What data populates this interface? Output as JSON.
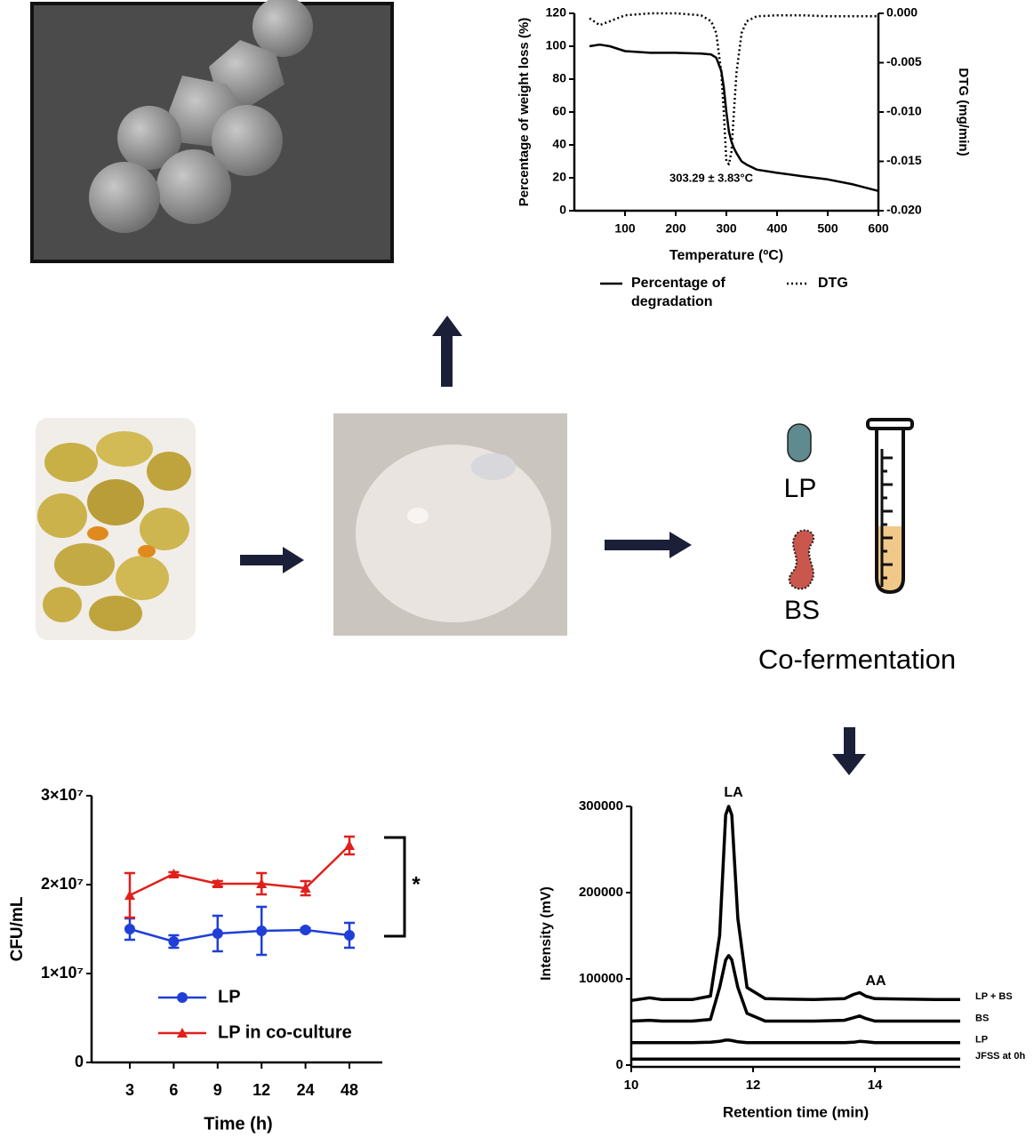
{
  "chart_data": [
    {
      "type": "line",
      "x_label": "Temperature (ºC)",
      "y_label": "Percentage of weight loss (%)",
      "y2_label": "DTG (mg/min)",
      "annotation": "303.29 ± 3.83°C",
      "x": [
        30,
        50,
        70,
        100,
        150,
        200,
        250,
        270,
        280,
        290,
        295,
        300,
        305,
        310,
        315,
        320,
        330,
        340,
        360,
        400,
        450,
        500,
        550,
        600
      ],
      "xlim": [
        0,
        600
      ],
      "xticks": [
        100,
        200,
        300,
        400,
        500,
        600
      ],
      "ylim": [
        0,
        120
      ],
      "yticks": [
        0,
        20,
        40,
        60,
        80,
        100,
        120
      ],
      "y2lim": [
        -0.02,
        0
      ],
      "y2ticks": [
        {
          "value": 0,
          "label": "0.000"
        },
        -0.005,
        {
          "value": -0.01,
          "label": "-0.010"
        },
        {
          "value": -0.015,
          "label": "-0.015"
        },
        {
          "value": -0.02,
          "label": "-0.020"
        }
      ],
      "legend": "bottom",
      "series": [
        {
          "name": "Percentage of degradation",
          "color": "#000000",
          "line_style": "solid",
          "values": [
            100,
            101,
            100,
            97,
            96,
            96,
            95.5,
            95,
            93,
            85,
            75,
            60,
            48,
            42,
            38,
            35,
            30,
            28,
            25,
            23,
            21,
            19,
            16,
            12
          ]
        },
        {
          "name": "DTG",
          "color": "#000000",
          "line_style": "dotted",
          "axis": "y2",
          "values": [
            -0.0005,
            -0.0012,
            -0.0008,
            -0.0002,
            0,
            0,
            -0.0002,
            -0.0008,
            -0.002,
            -0.006,
            -0.01,
            -0.015,
            -0.0153,
            -0.014,
            -0.01,
            -0.006,
            -0.002,
            -0.0008,
            -0.0003,
            -0.0002,
            -0.0002,
            -0.0003,
            -0.0003,
            -0.0003
          ]
        }
      ]
    },
    {
      "type": "line",
      "x_label": "Time (h)",
      "y_label": "CFU/mL",
      "annotation": "*",
      "categories": [
        "3",
        "6",
        "9",
        "12",
        "24",
        "48"
      ],
      "ylim": [
        0,
        30000000
      ],
      "yticks": [
        0,
        {
          "value": 10000000,
          "label": "1×10⁷"
        },
        {
          "value": 20000000,
          "label": "2×10⁷"
        },
        {
          "value": 30000000,
          "label": "3×10⁷"
        }
      ],
      "legend": "lower left",
      "series": [
        {
          "name": "LP",
          "color": "#1f3fd6",
          "marker": "circle",
          "values": [
            15000000,
            13600000,
            14500000,
            14800000,
            14900000,
            14300000
          ],
          "errors": [
            1200000,
            700000,
            2000000,
            2700000,
            200000,
            1400000
          ]
        },
        {
          "name": "LP in co-culture",
          "color": "#e0201b",
          "marker": "triangle",
          "values": [
            18800000,
            21200000,
            20100000,
            20100000,
            19600000,
            24400000
          ],
          "errors": [
            2500000,
            200000,
            300000,
            1200000,
            800000,
            1000000
          ]
        }
      ]
    },
    {
      "type": "line",
      "x_label": "Retention time (min)",
      "y_label": "Intensity (mV)",
      "peak_labels": [
        "LA",
        "AA"
      ],
      "x": [
        10,
        10.3,
        10.5,
        11,
        11.3,
        11.45,
        11.55,
        11.6,
        11.65,
        11.75,
        11.9,
        12.2,
        13,
        13.5,
        13.65,
        13.75,
        13.85,
        14,
        15,
        15.4
      ],
      "xlim": [
        10,
        15.4
      ],
      "xticks": [
        10,
        12,
        14
      ],
      "ylim": [
        0,
        300000
      ],
      "yticks": [
        0,
        100000,
        200000,
        300000
      ],
      "legend": "line end",
      "series": [
        {
          "name": "LP + BS",
          "color": "#000000",
          "values": [
            75000,
            78000,
            76000,
            76000,
            80000,
            150000,
            290000,
            300000,
            290000,
            170000,
            90000,
            77000,
            76000,
            77000,
            82000,
            84000,
            80000,
            77000,
            76000,
            76000
          ]
        },
        {
          "name": "BS",
          "color": "#000000",
          "values": [
            51000,
            52000,
            51000,
            51000,
            53000,
            90000,
            122000,
            127000,
            122000,
            90000,
            60000,
            51000,
            51000,
            52000,
            55000,
            57000,
            54000,
            51000,
            51000,
            51000
          ]
        },
        {
          "name": "LP",
          "color": "#000000",
          "values": [
            26000,
            26000,
            26000,
            26000,
            26500,
            27500,
            29000,
            29000,
            28500,
            27000,
            26000,
            26000,
            26000,
            26000,
            26500,
            27500,
            27000,
            26000,
            26000,
            26000
          ]
        },
        {
          "name": "JFSS at 0h",
          "color": "#000000",
          "values": [
            7000,
            7000,
            7000,
            7000,
            7000,
            7000,
            7000,
            7000,
            7000,
            7000,
            7000,
            7000,
            7000,
            7000,
            7000,
            7000,
            7000,
            7000,
            7000,
            7000
          ]
        }
      ]
    }
  ],
  "diagram": {
    "lp": "LP",
    "bs": "BS",
    "process": "Co-fermentation"
  }
}
